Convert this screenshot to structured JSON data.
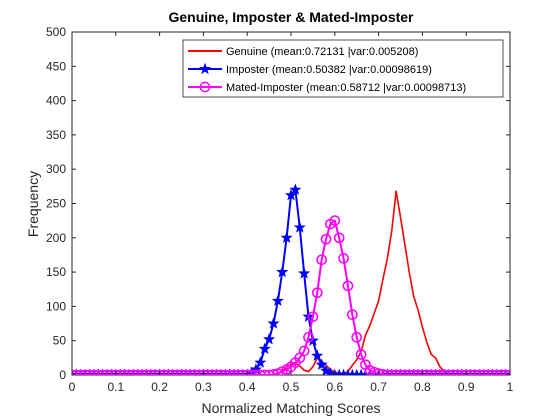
{
  "chart_data": {
    "type": "line",
    "title": "Genuine, Imposter & Mated-Imposter",
    "xlabel": "Normalized Matching Scores",
    "ylabel": "Frequency",
    "xlim": [
      0,
      1
    ],
    "ylim": [
      0,
      500
    ],
    "xticks": [
      "0",
      "0.1",
      "0.2",
      "0.3",
      "0.4",
      "0.5",
      "0.6",
      "0.7",
      "0.8",
      "0.9",
      "1"
    ],
    "yticks": [
      "0",
      "50",
      "100",
      "150",
      "200",
      "250",
      "300",
      "350",
      "400",
      "450",
      "500"
    ],
    "grid": false,
    "legend_position": "top-right",
    "series": [
      {
        "name": "Genuine (mean:0.72131 |var:0.005208)",
        "color": "#ff0000",
        "marker": "none",
        "x": [
          0.46,
          0.47,
          0.48,
          0.49,
          0.5,
          0.51,
          0.52,
          0.53,
          0.54,
          0.55,
          0.56,
          0.57,
          0.58,
          0.59,
          0.6,
          0.61,
          0.62,
          0.63,
          0.64,
          0.65,
          0.66,
          0.67,
          0.68,
          0.69,
          0.7,
          0.71,
          0.72,
          0.73,
          0.74,
          0.75,
          0.76,
          0.77,
          0.78,
          0.79,
          0.8,
          0.81,
          0.82,
          0.83,
          0.84,
          0.85,
          0.86,
          0.87,
          0.88
        ],
        "y": [
          0,
          2,
          6,
          12,
          16,
          17,
          13,
          7,
          5,
          12,
          25,
          20,
          14,
          8,
          4,
          3,
          2,
          5,
          14,
          22,
          34,
          58,
          72,
          90,
          108,
          140,
          170,
          210,
          268,
          230,
          190,
          150,
          115,
          95,
          70,
          48,
          30,
          25,
          12,
          5,
          2,
          1,
          0
        ]
      },
      {
        "name": "Imposter (mean:0.50382 |var:0.00098619)",
        "color": "#0000ff",
        "marker": "star",
        "x": [
          0,
          0.01,
          0.02,
          0.03,
          0.04,
          0.05,
          0.06,
          0.07,
          0.08,
          0.09,
          0.1,
          0.11,
          0.12,
          0.13,
          0.14,
          0.15,
          0.16,
          0.17,
          0.18,
          0.19,
          0.2,
          0.21,
          0.22,
          0.23,
          0.24,
          0.25,
          0.26,
          0.27,
          0.28,
          0.29,
          0.3,
          0.31,
          0.32,
          0.33,
          0.34,
          0.35,
          0.36,
          0.37,
          0.38,
          0.39,
          0.4,
          0.41,
          0.42,
          0.43,
          0.44,
          0.45,
          0.46,
          0.47,
          0.48,
          0.49,
          0.5,
          0.51,
          0.52,
          0.53,
          0.54,
          0.55,
          0.56,
          0.57,
          0.58,
          0.59,
          0.6,
          0.61,
          0.62,
          0.63,
          0.64,
          0.65,
          0.66,
          0.67,
          0.68,
          0.69,
          0.7,
          0.71,
          0.72,
          0.73,
          0.74,
          0.75,
          0.76,
          0.77,
          0.78,
          0.79,
          0.8,
          0.81,
          0.82,
          0.83,
          0.84,
          0.85,
          0.86,
          0.87,
          0.88,
          0.89,
          0.9,
          0.91,
          0.92,
          0.93,
          0.94,
          0.95,
          0.96,
          0.97,
          0.98,
          0.99,
          1.0
        ],
        "y": [
          0,
          0,
          0,
          0,
          0,
          0,
          0,
          0,
          0,
          0,
          0,
          0,
          0,
          0,
          0,
          0,
          0,
          0,
          0,
          0,
          0,
          0,
          0,
          0,
          0,
          0,
          0,
          0,
          0,
          0,
          0,
          0,
          0,
          0,
          0,
          0,
          0,
          0,
          0,
          0,
          0,
          3,
          8,
          18,
          38,
          52,
          75,
          108,
          150,
          200,
          262,
          270,
          215,
          148,
          85,
          50,
          28,
          15,
          6,
          2,
          0,
          0,
          0,
          0,
          0,
          0,
          0,
          0,
          0,
          0,
          0,
          0,
          0,
          0,
          0,
          0,
          0,
          0,
          0,
          0,
          0,
          0,
          0,
          0,
          0,
          0,
          0,
          0,
          0,
          0,
          0,
          0,
          0,
          0,
          0,
          0,
          0,
          0,
          0,
          0,
          0
        ]
      },
      {
        "name": "Mated-Imposter (mean:0.58712 |var:0.00098713)",
        "color": "#ff00ff",
        "marker": "circle",
        "x": [
          0,
          0.01,
          0.02,
          0.03,
          0.04,
          0.05,
          0.06,
          0.07,
          0.08,
          0.09,
          0.1,
          0.11,
          0.12,
          0.13,
          0.14,
          0.15,
          0.16,
          0.17,
          0.18,
          0.19,
          0.2,
          0.21,
          0.22,
          0.23,
          0.24,
          0.25,
          0.26,
          0.27,
          0.28,
          0.29,
          0.3,
          0.31,
          0.32,
          0.33,
          0.34,
          0.35,
          0.36,
          0.37,
          0.38,
          0.39,
          0.4,
          0.41,
          0.42,
          0.43,
          0.44,
          0.45,
          0.46,
          0.47,
          0.48,
          0.49,
          0.5,
          0.51,
          0.52,
          0.53,
          0.54,
          0.55,
          0.56,
          0.57,
          0.58,
          0.59,
          0.6,
          0.61,
          0.62,
          0.63,
          0.64,
          0.65,
          0.66,
          0.67,
          0.68,
          0.69,
          0.7,
          0.71,
          0.72,
          0.73,
          0.74,
          0.75,
          0.76,
          0.77,
          0.78,
          0.79,
          0.8,
          0.81,
          0.82,
          0.83,
          0.84,
          0.85,
          0.86,
          0.87,
          0.88,
          0.89,
          0.9,
          0.91,
          0.92,
          0.93,
          0.94,
          0.95,
          0.96,
          0.97,
          0.98,
          0.99,
          1.0
        ],
        "y": [
          0,
          0,
          0,
          0,
          0,
          0,
          0,
          0,
          0,
          0,
          0,
          0,
          0,
          0,
          0,
          0,
          0,
          0,
          0,
          0,
          0,
          0,
          0,
          0,
          0,
          0,
          0,
          0,
          0,
          0,
          0,
          0,
          0,
          0,
          0,
          0,
          0,
          0,
          0,
          0,
          0,
          0,
          0,
          0,
          0,
          0,
          1,
          2,
          5,
          8,
          12,
          18,
          25,
          35,
          55,
          85,
          120,
          168,
          198,
          220,
          225,
          200,
          170,
          130,
          88,
          55,
          30,
          15,
          7,
          4,
          2,
          1,
          0,
          0,
          0,
          0,
          0,
          0,
          0,
          0,
          0,
          0,
          0,
          0,
          0,
          0,
          0,
          0,
          0,
          0,
          0,
          0,
          0,
          0,
          0,
          0,
          0,
          0,
          0,
          0,
          0
        ]
      }
    ]
  }
}
